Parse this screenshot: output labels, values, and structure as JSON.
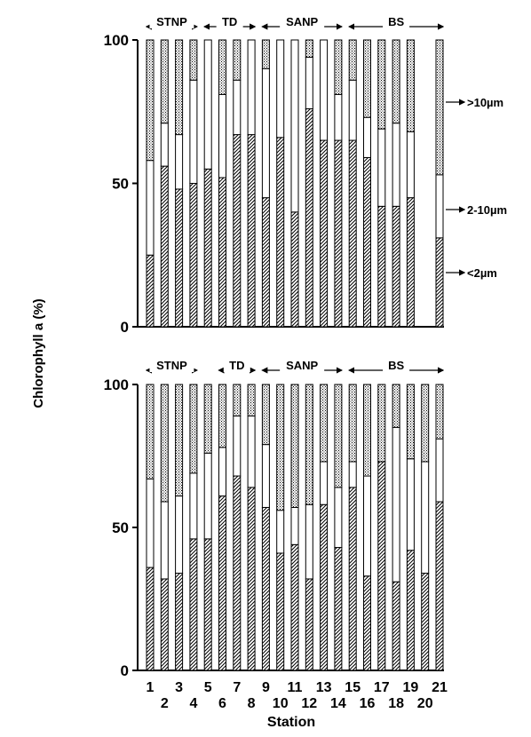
{
  "ylabel": "Chlorophyll a (%)",
  "xlabel": "Station",
  "x_ticks": [
    "1",
    "2",
    "3",
    "4",
    "5",
    "6",
    "7",
    "8",
    "9",
    "10",
    "11",
    "12",
    "13",
    "14",
    "15",
    "16",
    "17",
    "18",
    "19",
    "20",
    "21"
  ],
  "y_ticks": [
    "0",
    "50",
    "100"
  ],
  "legend": {
    "gt10": ">10µm",
    "mid": "2-10µm",
    "lt2": "<2µm"
  },
  "colors": {
    "bar_stroke": "#000000",
    "background": "#ffffff"
  },
  "chart_data": [
    {
      "type": "bar",
      "stacked": true,
      "panel": "top",
      "ylim": [
        0,
        100
      ],
      "regions": [
        {
          "label": "STNP",
          "from": 1,
          "to": 4
        },
        {
          "label": "TD",
          "from": 5,
          "to": 8
        },
        {
          "label": "SANP",
          "from": 9,
          "to": 14
        },
        {
          "label": "BS",
          "from": 15,
          "to": 21
        }
      ],
      "stations": [
        1,
        2,
        3,
        4,
        5,
        6,
        7,
        8,
        9,
        10,
        11,
        12,
        13,
        14,
        15,
        16,
        17,
        18,
        19,
        20,
        21
      ],
      "series": [
        {
          "name": "<2µm",
          "values": [
            25,
            56,
            48,
            50,
            55,
            52,
            67,
            67,
            45,
            66,
            40,
            76,
            65,
            65,
            65,
            59,
            42,
            42,
            45,
            null,
            31
          ]
        },
        {
          "name": "2-10µm",
          "values": [
            33,
            15,
            19,
            36,
            45,
            29,
            19,
            33,
            45,
            34,
            60,
            18,
            35,
            16,
            21,
            14,
            27,
            29,
            23,
            null,
            22
          ]
        },
        {
          "name": ">10µm",
          "values": [
            42,
            29,
            33,
            14,
            0,
            19,
            14,
            0,
            10,
            0,
            0,
            6,
            0,
            19,
            14,
            27,
            31,
            29,
            32,
            null,
            47
          ]
        }
      ]
    },
    {
      "type": "bar",
      "stacked": true,
      "panel": "bottom",
      "ylim": [
        0,
        100
      ],
      "regions": [
        {
          "label": "STNP",
          "from": 1,
          "to": 4
        },
        {
          "label": "TD",
          "from": 6,
          "to": 8
        },
        {
          "label": "SANP",
          "from": 9,
          "to": 14
        },
        {
          "label": "BS",
          "from": 15,
          "to": 21
        }
      ],
      "stations": [
        1,
        2,
        3,
        4,
        5,
        6,
        7,
        8,
        9,
        10,
        11,
        12,
        13,
        14,
        15,
        16,
        17,
        18,
        19,
        20,
        21
      ],
      "series": [
        {
          "name": "<2µm",
          "values": [
            36,
            32,
            34,
            46,
            46,
            61,
            68,
            64,
            57,
            41,
            44,
            32,
            58,
            43,
            64,
            33,
            73,
            31,
            42,
            34,
            59
          ]
        },
        {
          "name": "2-10µm",
          "values": [
            31,
            27,
            27,
            23,
            30,
            17,
            21,
            25,
            22,
            15,
            13,
            26,
            15,
            21,
            9,
            35,
            0,
            54,
            32,
            39,
            22
          ]
        },
        {
          "name": ">10µm",
          "values": [
            33,
            41,
            39,
            31,
            24,
            22,
            11,
            11,
            21,
            44,
            43,
            42,
            27,
            36,
            27,
            32,
            27,
            15,
            26,
            27,
            19
          ]
        }
      ]
    }
  ]
}
